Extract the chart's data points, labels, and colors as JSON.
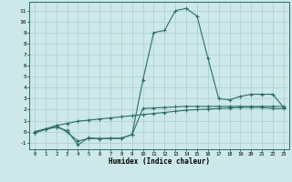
{
  "xlabel": "Humidex (Indice chaleur)",
  "xlim": [
    -0.5,
    23.5
  ],
  "ylim": [
    -1.6,
    11.8
  ],
  "yticks": [
    -1,
    0,
    1,
    2,
    3,
    4,
    5,
    6,
    7,
    8,
    9,
    10,
    11
  ],
  "xticks": [
    0,
    1,
    2,
    3,
    4,
    5,
    6,
    7,
    8,
    9,
    10,
    11,
    12,
    13,
    14,
    15,
    16,
    17,
    18,
    19,
    20,
    21,
    22,
    23
  ],
  "bg_color": "#cce8e8",
  "line_color": "#2e6e68",
  "grid_color": "#aacece",
  "line_upper_x": [
    0,
    1,
    2,
    3,
    4,
    5,
    6,
    7,
    8,
    9,
    10,
    11,
    12,
    13,
    14,
    15,
    16,
    17,
    18,
    19,
    20,
    21,
    22,
    23
  ],
  "line_upper_y": [
    -0.1,
    0.2,
    0.4,
    0.1,
    -1.2,
    -0.55,
    -0.65,
    -0.6,
    -0.6,
    -0.25,
    4.7,
    9.0,
    9.2,
    11.0,
    11.2,
    10.5,
    6.7,
    3.0,
    2.9,
    3.2,
    3.4,
    3.4,
    3.4,
    2.2
  ],
  "line_middle_x": [
    0,
    1,
    2,
    3,
    4,
    5,
    6,
    7,
    8,
    9,
    10,
    11,
    12,
    13,
    14,
    15,
    16,
    17,
    18,
    19,
    20,
    21,
    22,
    23
  ],
  "line_middle_y": [
    -0.1,
    0.2,
    0.55,
    0.75,
    0.95,
    1.05,
    1.15,
    1.25,
    1.35,
    1.45,
    1.55,
    1.65,
    1.75,
    1.85,
    1.95,
    2.0,
    2.05,
    2.1,
    2.15,
    2.2,
    2.2,
    2.2,
    2.1,
    2.1
  ],
  "line_lower_x": [
    0,
    1,
    2,
    3,
    4,
    5,
    6,
    7,
    8,
    9,
    10,
    11,
    12,
    13,
    14,
    15,
    16,
    17,
    18,
    19,
    20,
    21,
    22,
    23
  ],
  "line_lower_y": [
    -0.0,
    0.25,
    0.55,
    -0.05,
    -0.85,
    -0.62,
    -0.62,
    -0.62,
    -0.62,
    -0.28,
    2.1,
    2.15,
    2.2,
    2.25,
    2.3,
    2.3,
    2.3,
    2.3,
    2.3,
    2.3,
    2.3,
    2.3,
    2.3,
    2.3
  ]
}
